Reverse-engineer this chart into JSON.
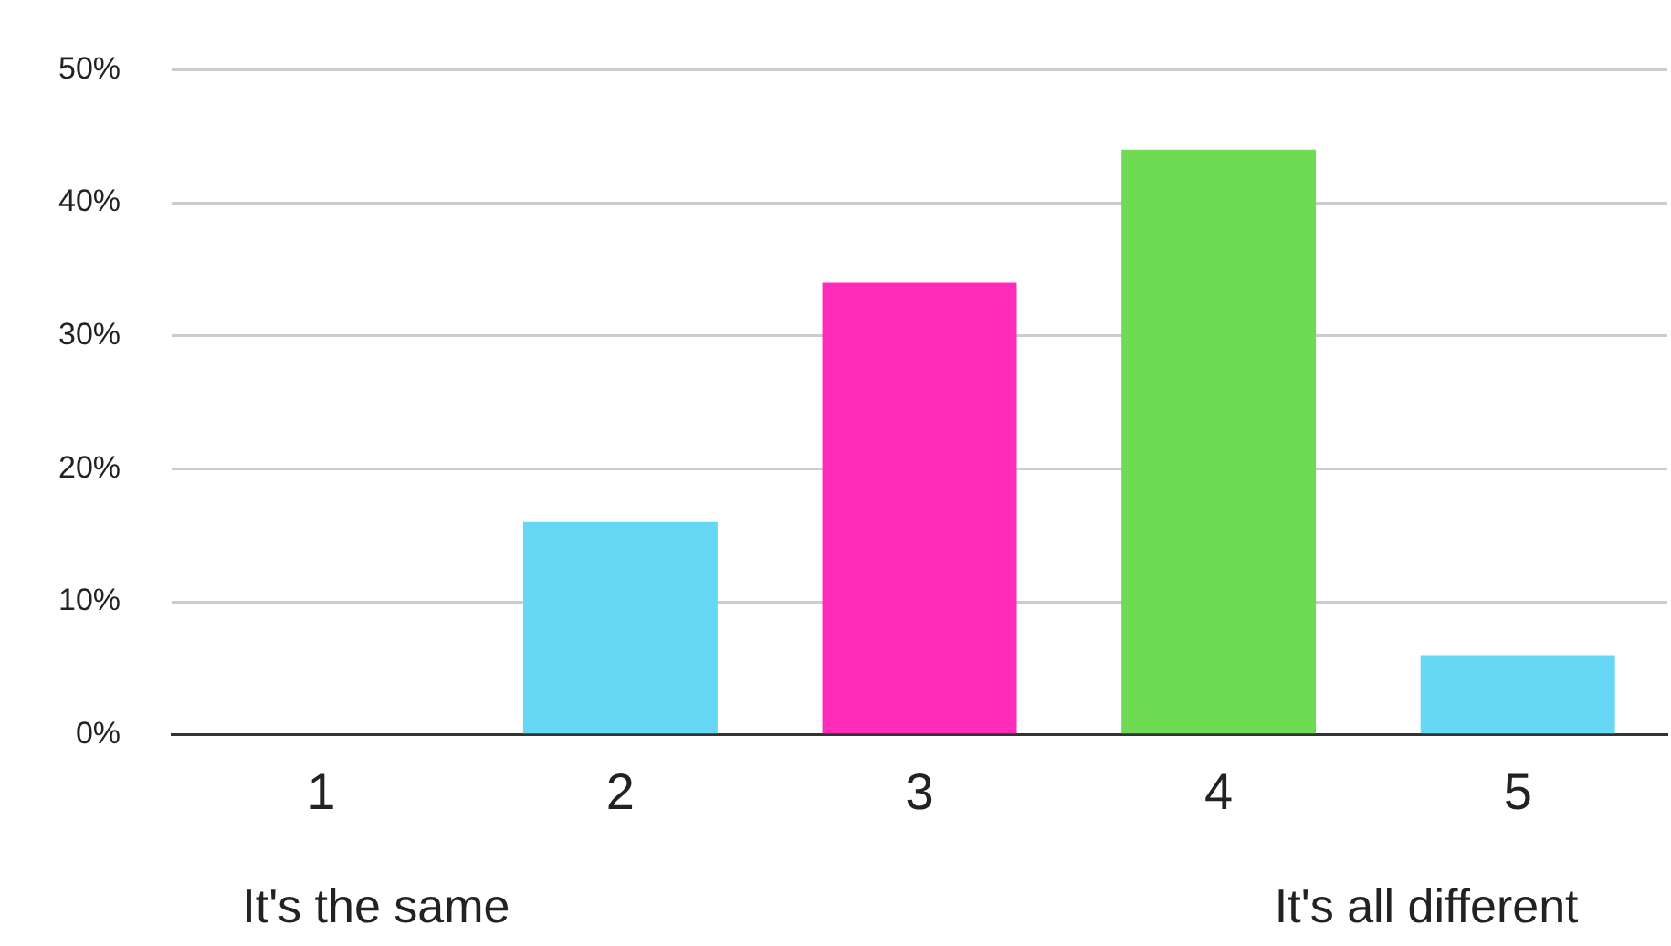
{
  "chart_data": {
    "type": "bar",
    "categories": [
      "1",
      "2",
      "3",
      "4",
      "5"
    ],
    "values": [
      0,
      16,
      34,
      44,
      6
    ],
    "colors": [
      "#66d7f5",
      "#66d7f5",
      "#ff2cb9",
      "#6fdb55",
      "#66d7f5"
    ],
    "ylim": [
      0,
      50
    ],
    "yticks": [
      {
        "value": 0,
        "label": "0%"
      },
      {
        "value": 10,
        "label": "10%"
      },
      {
        "value": 20,
        "label": "20%"
      },
      {
        "value": 30,
        "label": "30%"
      },
      {
        "value": 40,
        "label": "40%"
      },
      {
        "value": 50,
        "label": "50%"
      }
    ],
    "grid": "y",
    "legend": false,
    "annotations": [
      "It's the same",
      "It's all different"
    ]
  }
}
